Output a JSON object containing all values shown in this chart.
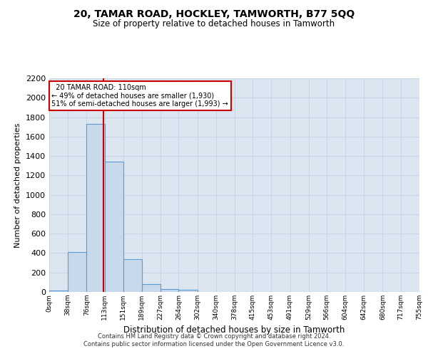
{
  "title": "20, TAMAR ROAD, HOCKLEY, TAMWORTH, B77 5QQ",
  "subtitle": "Size of property relative to detached houses in Tamworth",
  "xlabel": "Distribution of detached houses by size in Tamworth",
  "ylabel": "Number of detached properties",
  "property_label": "20 TAMAR ROAD: 110sqm",
  "pct_smaller": 49,
  "n_smaller": 1930,
  "pct_larger_semi": 51,
  "n_larger_semi": 1993,
  "bin_edges": [
    0,
    38,
    76,
    113,
    151,
    189,
    227,
    264,
    302,
    340,
    378,
    415,
    453,
    491,
    529,
    566,
    604,
    642,
    680,
    717,
    755
  ],
  "bin_counts": [
    15,
    410,
    1730,
    1340,
    340,
    80,
    30,
    20,
    0,
    0,
    0,
    0,
    0,
    0,
    0,
    0,
    0,
    0,
    0,
    0
  ],
  "bar_color": "#c9d9ec",
  "bar_edge_color": "#5b9bd5",
  "vline_x": 110,
  "vline_color": "#cc0000",
  "annotation_box_color": "#cc0000",
  "grid_color": "#c8d4e3",
  "background_color": "#dce6f1",
  "ylim": [
    0,
    2200
  ],
  "yticks": [
    0,
    200,
    400,
    600,
    800,
    1000,
    1200,
    1400,
    1600,
    1800,
    2000,
    2200
  ],
  "footer_line1": "Contains HM Land Registry data © Crown copyright and database right 2024.",
  "footer_line2": "Contains public sector information licensed under the Open Government Licence v3.0."
}
